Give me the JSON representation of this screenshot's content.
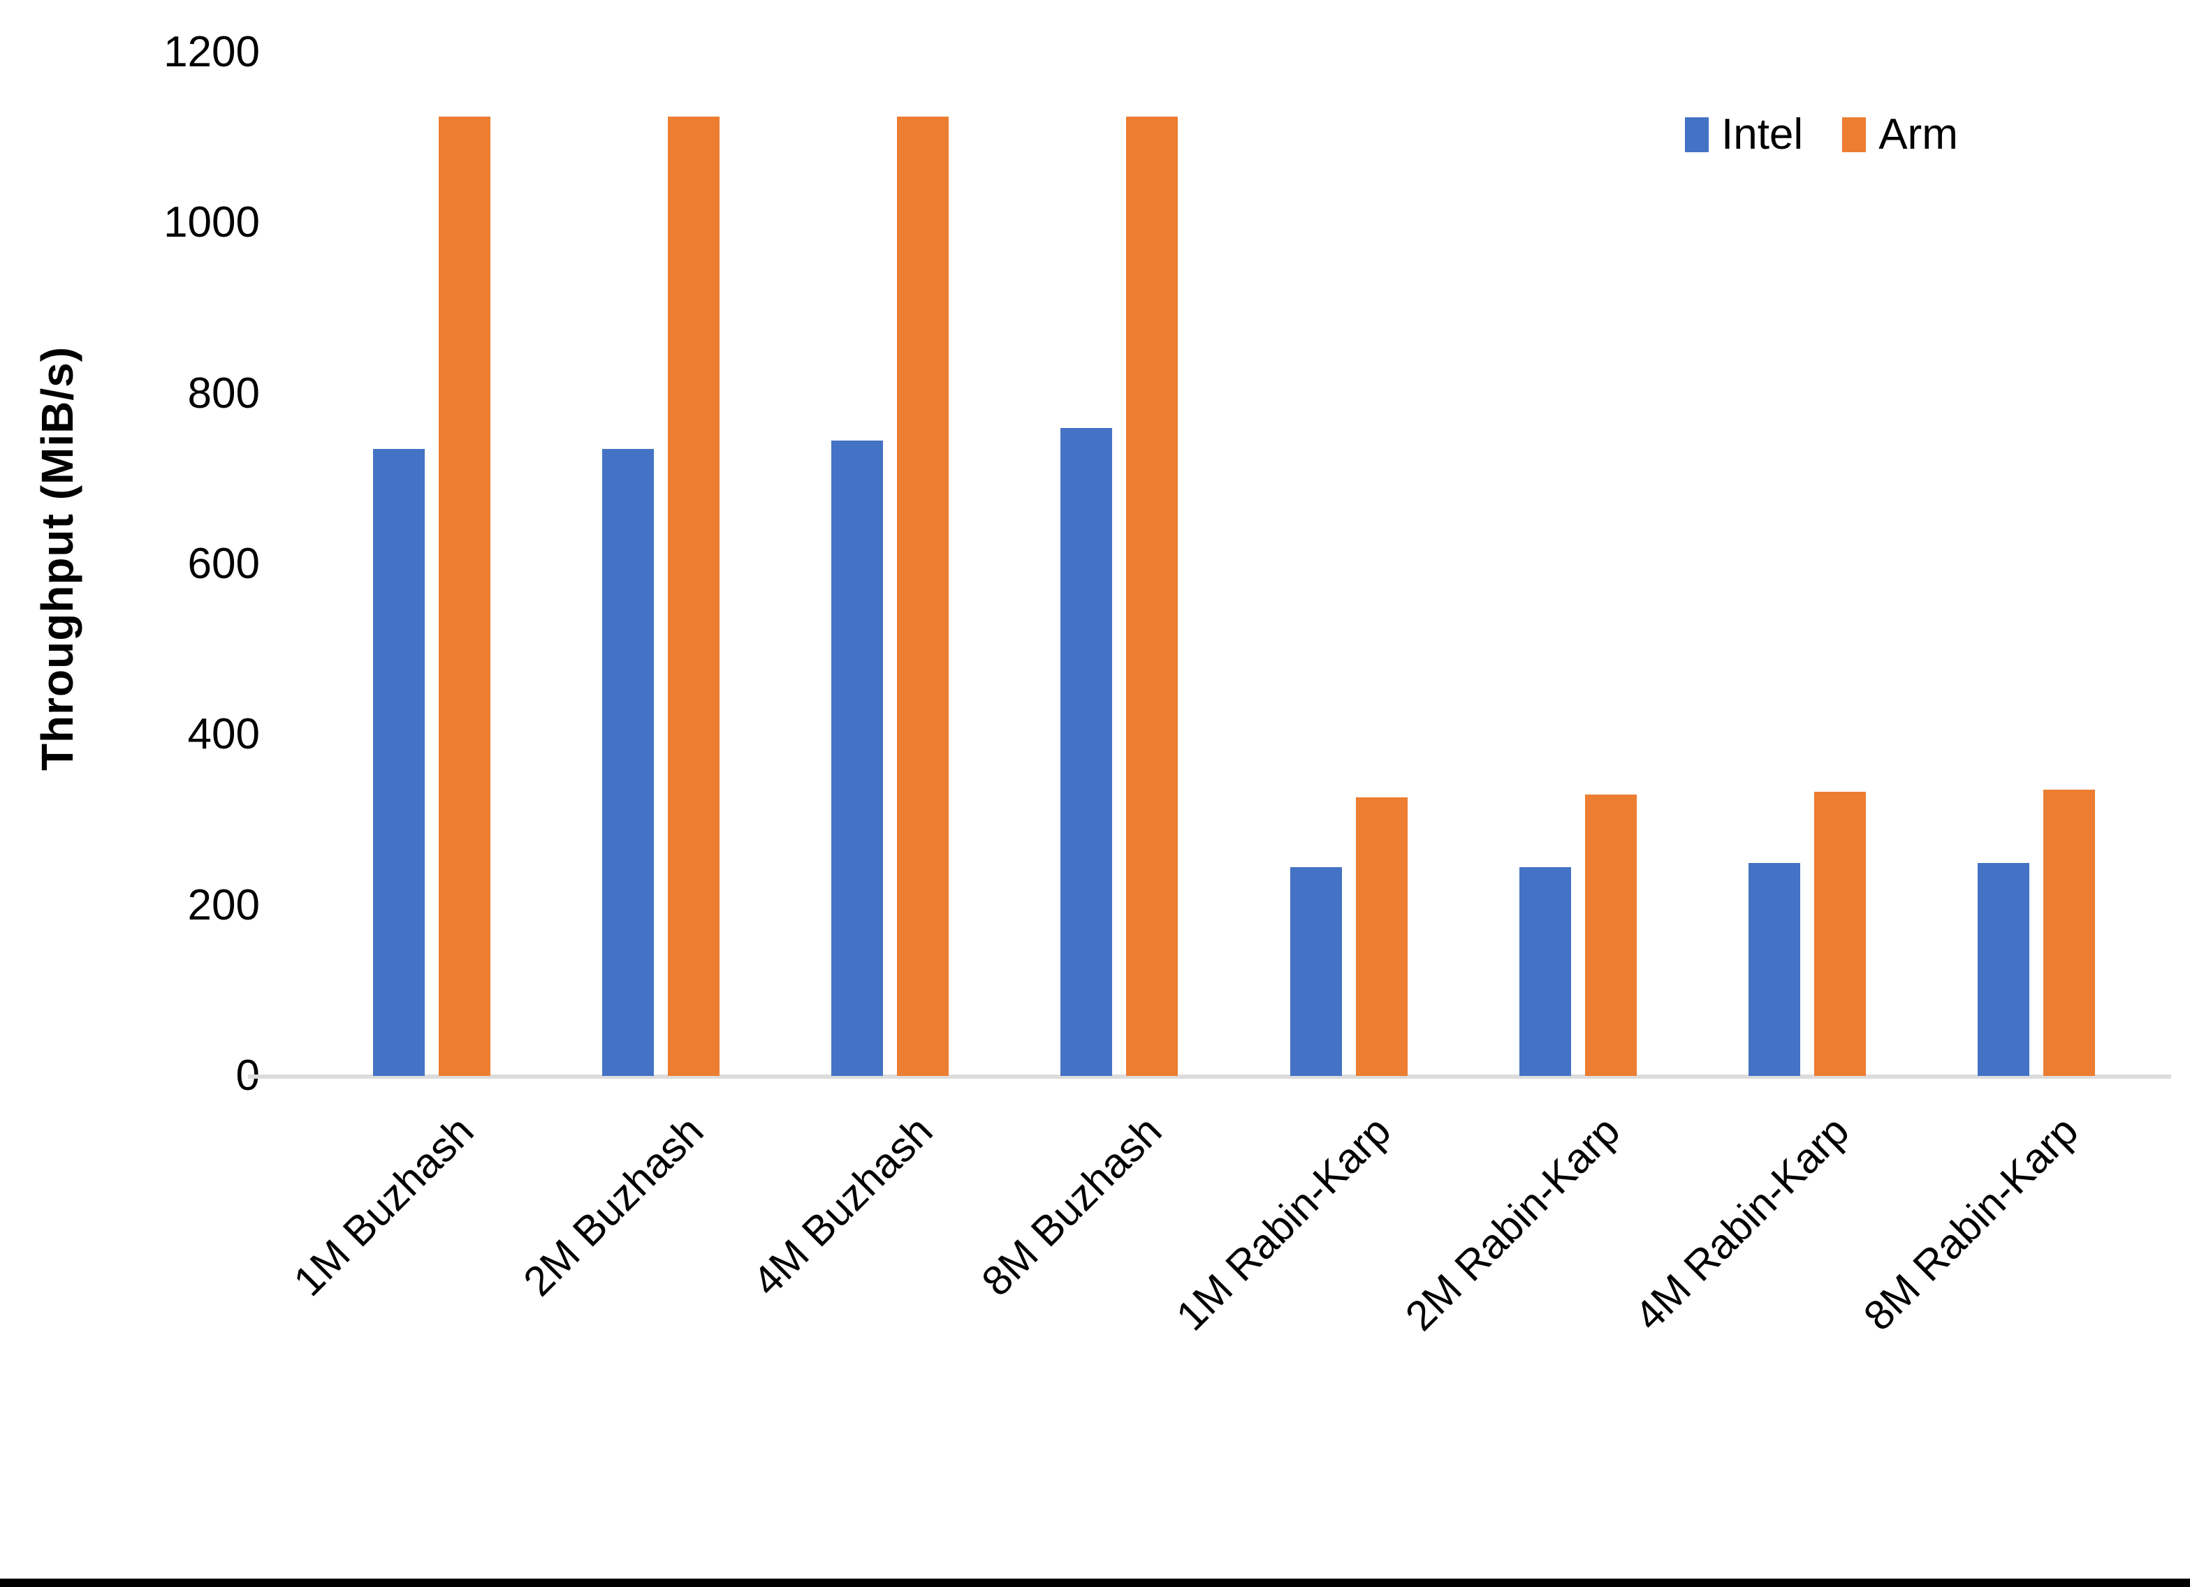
{
  "chart_data": {
    "type": "bar",
    "title": "",
    "ylabel": "Throughput (MiB/s)",
    "xlabel": "",
    "ylim": [
      0,
      1200
    ],
    "yticks": [
      0,
      200,
      400,
      600,
      800,
      1000,
      1200
    ],
    "grid": false,
    "legend_position": "top-right",
    "categories": [
      "1M Buzhash",
      "2M Buzhash",
      "4M Buzhash",
      "8M Buzhash",
      "1M Rabin-Karp",
      "2M Rabin-Karp",
      "4M Rabin-Karp",
      "8M Rabin-Karp"
    ],
    "series": [
      {
        "name": "Intel",
        "color": "#4472C4",
        "values": [
          735,
          735,
          745,
          760,
          245,
          245,
          250,
          250
        ]
      },
      {
        "name": "Arm",
        "color": "#ED7D31",
        "values": [
          1125,
          1125,
          1125,
          1125,
          327,
          330,
          333,
          336
        ]
      }
    ],
    "colors": {
      "axis_line": "#DCDCDC",
      "text": "#000000",
      "bottom_border": "#000000"
    }
  }
}
